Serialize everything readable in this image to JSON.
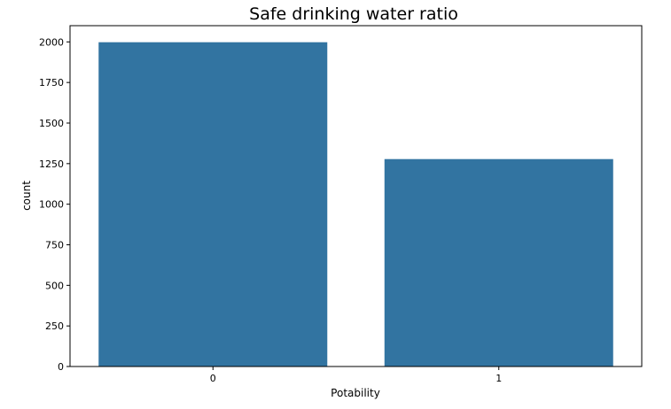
{
  "chart_data": {
    "type": "bar",
    "title": "Safe drinking water ratio",
    "xlabel": "Potability",
    "ylabel": "count",
    "categories": [
      "0",
      "1"
    ],
    "values": [
      1998,
      1278
    ],
    "ylim": [
      0,
      2100
    ],
    "yticks": [
      0,
      250,
      500,
      750,
      1000,
      1250,
      1500,
      1750,
      2000
    ],
    "bar_color": "#3274a1",
    "grid": false,
    "legend": "none"
  }
}
